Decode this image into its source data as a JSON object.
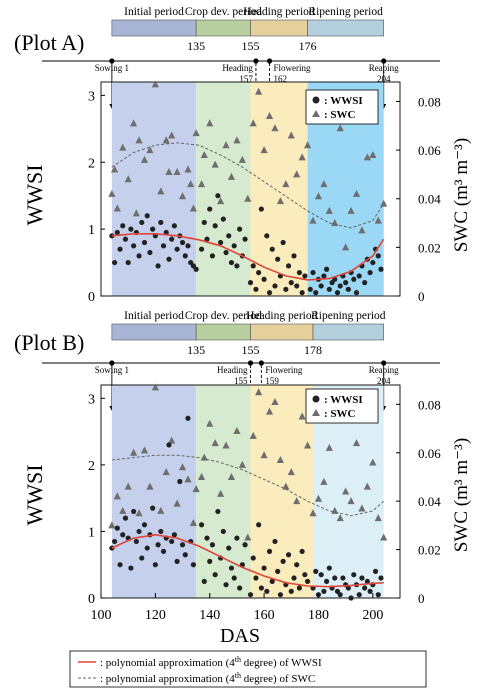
{
  "periods_a": [
    {
      "label": "Initial period",
      "color": "#a9b5d4",
      "from": 104,
      "to": 135
    },
    {
      "label": "Crop dev. period",
      "color": "#b7cf9f",
      "from": 135,
      "to": 155
    },
    {
      "label": "Heading period",
      "color": "#e6d09e",
      "from": 155,
      "to": 176
    },
    {
      "label": "Ripening period",
      "color": "#b4d0dd",
      "from": 176,
      "to": 204
    }
  ],
  "periods_b": [
    {
      "label": "Initial period",
      "color": "#a9b5d4",
      "from": 104,
      "to": 135
    },
    {
      "label": "Crop dev. period",
      "color": "#b7cf9f",
      "from": 135,
      "to": 155
    },
    {
      "label": "Heading period",
      "color": "#e6d09e",
      "from": 155,
      "to": 178
    },
    {
      "label": "Ripening period",
      "color": "#b4d0dd",
      "from": 178,
      "to": 204
    }
  ],
  "ticks_a": [
    "135",
    "155",
    "176"
  ],
  "ticks_b": [
    "135",
    "155",
    "178"
  ],
  "plot_a": {
    "title": "(Plot A)",
    "events": [
      {
        "label": "Sowing 1",
        "das": 104
      },
      {
        "label": "Heading",
        "sub": "157",
        "das": 157
      },
      {
        "label": "Flowering",
        "sub": "162",
        "das": 162
      },
      {
        "label": "Reaping",
        "sub": "204",
        "das": 204
      }
    ]
  },
  "plot_b": {
    "title": "(Plot B)",
    "events": [
      {
        "label": "Sowing 1",
        "das": 104
      },
      {
        "label": "Heading",
        "sub": "155",
        "das": 155
      },
      {
        "label": "Flowering",
        "sub": "159",
        "das": 159
      },
      {
        "label": "Reaping",
        "sub": "204",
        "das": 204
      }
    ]
  },
  "axes": {
    "ylabel_left": "WWSI",
    "ylabel_right": "SWC (m³ m⁻³)",
    "xlabel": "DAS",
    "x_ticks": [
      "100",
      "120",
      "140",
      "160",
      "180",
      "200"
    ],
    "y_left_ticks": [
      "0",
      "1",
      "2",
      "3"
    ],
    "y_right_ticks": [
      "0",
      "0.02",
      "0.04",
      "0.06",
      "0.08"
    ]
  },
  "legend_inset": {
    "wwsi": ": WWSI",
    "swc": ": SWC"
  },
  "legend_bottom": {
    "line1_pre": ": polynomial approximation (4",
    "sup": "th",
    "line1_post": " degree) of WWSI",
    "line2_pre": ": polynomial approximation (4",
    "line2_post": " degree) of SWC"
  },
  "colors": {
    "initial": "#c5d0ec",
    "crop": "#d6ead0",
    "heading": "#fbecbe",
    "ripening_a": "#9ad8f5",
    "ripening_b": "#dceef6",
    "wwsi_curve": "#e0453a",
    "marker": "#222222",
    "swc_marker": "#6e6e6e"
  },
  "chart_data": [
    {
      "type": "scatter",
      "title": "(Plot A)",
      "xlabel": "DAS",
      "ylabel": "WWSI",
      "y2label": "SWC (m³ m⁻³)",
      "xlim": [
        100,
        210
      ],
      "ylim": [
        0,
        3.2
      ],
      "y2lim": [
        0,
        0.088
      ],
      "series": [
        {
          "name": "WWSI",
          "axis": "left",
          "x": [
            104,
            105,
            106,
            107,
            108,
            109,
            110,
            111,
            112,
            113,
            114,
            115,
            116,
            117,
            118,
            119,
            120,
            121,
            122,
            123,
            124,
            125,
            126,
            127,
            128,
            129,
            130,
            131,
            132,
            133,
            134,
            135,
            137,
            138,
            139,
            140,
            141,
            142,
            143,
            144,
            145,
            146,
            147,
            148,
            149,
            150,
            151,
            152,
            153,
            155,
            156,
            157,
            158,
            159,
            160,
            161,
            162,
            163,
            164,
            165,
            166,
            167,
            168,
            169,
            170,
            171,
            172,
            173,
            174,
            175,
            177,
            178,
            179,
            180,
            181,
            182,
            183,
            184,
            185,
            186,
            187,
            188,
            189,
            190,
            191,
            192,
            193,
            194,
            195,
            196,
            197,
            198,
            199,
            200,
            201,
            202,
            203
          ],
          "y": [
            0.9,
            0.5,
            0.95,
            0.7,
            1.05,
            0.85,
            0.5,
            1.0,
            0.75,
            0.95,
            0.6,
            1.1,
            0.8,
            1.2,
            0.65,
            1.0,
            0.9,
            0.45,
            1.1,
            0.75,
            0.95,
            0.55,
            0.85,
            1.05,
            0.7,
            0.9,
            0.8,
            0.6,
            0.75,
            0.5,
            0.45,
            0.4,
            0.7,
            1.1,
            0.85,
            1.3,
            0.6,
            1.05,
            1.5,
            0.8,
            1.15,
            0.65,
            0.9,
            0.5,
            0.75,
            0.45,
            1.0,
            0.6,
            0.85,
            0.2,
            0.45,
            0.1,
            0.35,
            1.3,
            0.25,
            0.9,
            0.05,
            0.7,
            0.15,
            0.55,
            0.3,
            0.8,
            0.1,
            0.45,
            0.2,
            0.6,
            0.15,
            0.35,
            0.05,
            0.3,
            0.1,
            0.35,
            0.05,
            0.25,
            0.15,
            0.3,
            0.4,
            0.1,
            0.2,
            0.25,
            0.05,
            0.15,
            0.3,
            0.2,
            0.1,
            0.35,
            0.25,
            0.05,
            0.3,
            0.45,
            0.2,
            0.55,
            0.35,
            0.5,
            0.7,
            0.6,
            0.4
          ]
        },
        {
          "name": "SWC",
          "axis": "right",
          "x": [
            104,
            105,
            106,
            108,
            110,
            112,
            113,
            114,
            116,
            118,
            120,
            122,
            124,
            125,
            126,
            128,
            130,
            132,
            133,
            134,
            135,
            137,
            138,
            140,
            142,
            144,
            146,
            148,
            150,
            152,
            154,
            156,
            158,
            160,
            162,
            164,
            166,
            168,
            170,
            172,
            174,
            176,
            178,
            180,
            182,
            184,
            186,
            188,
            190,
            192,
            194,
            196,
            198,
            200,
            202,
            204
          ],
          "y": [
            0.042,
            0.052,
            0.036,
            0.061,
            0.048,
            0.071,
            0.034,
            0.064,
            0.056,
            0.06,
            0.087,
            0.043,
            0.064,
            0.051,
            0.066,
            0.051,
            0.041,
            0.052,
            0.046,
            0.036,
            0.067,
            0.046,
            0.058,
            0.071,
            0.054,
            0.039,
            0.062,
            0.049,
            0.064,
            0.056,
            0.04,
            0.071,
            0.084,
            0.06,
            0.074,
            0.069,
            0.039,
            0.046,
            0.066,
            0.05,
            0.057,
            0.062,
            0.031,
            0.041,
            0.046,
            0.035,
            0.03,
            0.069,
            0.02,
            0.035,
            0.042,
            0.027,
            0.057,
            0.058,
            0.031,
            0.038
          ]
        }
      ],
      "fits": [
        {
          "name": "polynomial approximation (4th degree) of WWSI",
          "axis": "left",
          "x": [
            104,
            112,
            120,
            128,
            136,
            144,
            152,
            160,
            168,
            176,
            184,
            192,
            200,
            204
          ],
          "y": [
            0.9,
            0.93,
            0.93,
            0.9,
            0.84,
            0.75,
            0.6,
            0.43,
            0.3,
            0.24,
            0.26,
            0.37,
            0.6,
            0.85
          ]
        },
        {
          "name": "polynomial approximation (4th degree) of SWC",
          "axis": "right",
          "x": [
            104,
            112,
            120,
            128,
            136,
            144,
            152,
            160,
            168,
            176,
            184,
            192,
            200,
            204
          ],
          "y": [
            0.053,
            0.059,
            0.062,
            0.063,
            0.062,
            0.058,
            0.053,
            0.047,
            0.041,
            0.035,
            0.03,
            0.028,
            0.031,
            0.038
          ]
        }
      ]
    },
    {
      "type": "scatter",
      "title": "(Plot B)",
      "xlabel": "DAS",
      "ylabel": "WWSI",
      "y2label": "SWC (m³ m⁻³)",
      "xlim": [
        100,
        210
      ],
      "ylim": [
        0,
        3.2
      ],
      "y2lim": [
        0,
        0.088
      ],
      "series": [
        {
          "name": "WWSI",
          "axis": "left",
          "x": [
            104,
            105,
            106,
            107,
            108,
            109,
            110,
            111,
            112,
            113,
            114,
            115,
            116,
            117,
            118,
            119,
            120,
            121,
            122,
            123,
            124,
            125,
            126,
            127,
            128,
            129,
            130,
            131,
            132,
            133,
            134,
            137,
            138,
            139,
            140,
            141,
            142,
            143,
            144,
            145,
            146,
            147,
            148,
            149,
            150,
            151,
            152,
            153,
            155,
            156,
            157,
            158,
            159,
            160,
            161,
            162,
            163,
            164,
            165,
            166,
            167,
            168,
            169,
            170,
            171,
            172,
            173,
            174,
            175,
            176,
            178,
            179,
            180,
            181,
            182,
            183,
            184,
            185,
            186,
            187,
            188,
            189,
            190,
            191,
            192,
            193,
            194,
            195,
            196,
            197,
            198,
            199,
            200,
            201,
            202,
            203
          ],
          "y": [
            0.75,
            0.85,
            1.05,
            0.5,
            0.95,
            1.2,
            0.9,
            0.45,
            1.3,
            0.85,
            1.0,
            0.6,
            1.1,
            0.75,
            0.95,
            1.35,
            0.5,
            0.8,
            1.0,
            0.7,
            0.9,
            2.3,
            0.85,
            0.95,
            0.55,
            1.75,
            0.8,
            0.65,
            2.7,
            0.85,
            0.5,
            1.1,
            0.25,
            0.9,
            0.55,
            0.8,
            0.35,
            1.3,
            0.6,
            1.0,
            0.2,
            0.75,
            0.45,
            0.3,
            0.9,
            0.15,
            0.5,
            0.8,
            0.05,
            0.6,
            0.3,
            1.1,
            0.15,
            0.45,
            0.1,
            0.7,
            0.25,
            0.85,
            0.4,
            0.05,
            0.55,
            0.2,
            0.65,
            0.1,
            0.3,
            0.5,
            0.15,
            0.7,
            0.35,
            0.25,
            0.15,
            0.4,
            0.05,
            0.35,
            0.1,
            0.25,
            0.45,
            0.15,
            0.3,
            0.1,
            0.05,
            0.3,
            0.2,
            0.15,
            0.0,
            0.35,
            0.2,
            0.05,
            0.3,
            0.15,
            0.25,
            0.1,
            0.2,
            0.4,
            0.05,
            0.3
          ]
        },
        {
          "name": "SWC",
          "axis": "right",
          "x": [
            104,
            106,
            108,
            110,
            112,
            114,
            116,
            118,
            120,
            122,
            124,
            126,
            128,
            130,
            132,
            134,
            135,
            137,
            138,
            140,
            142,
            144,
            146,
            148,
            150,
            152,
            154,
            156,
            158,
            160,
            162,
            164,
            166,
            168,
            170,
            172,
            174,
            176,
            178,
            180,
            182,
            184,
            186,
            188,
            190,
            192,
            194,
            196,
            198,
            200,
            202,
            204
          ],
          "y": [
            0.03,
            0.042,
            0.036,
            0.046,
            0.06,
            0.035,
            0.061,
            0.046,
            0.087,
            0.036,
            0.052,
            0.065,
            0.039,
            0.054,
            0.049,
            0.031,
            0.045,
            0.05,
            0.058,
            0.072,
            0.064,
            0.043,
            0.063,
            0.05,
            0.069,
            0.055,
            0.025,
            0.067,
            0.085,
            0.059,
            0.077,
            0.081,
            0.057,
            0.046,
            0.052,
            0.04,
            0.075,
            0.063,
            0.035,
            0.041,
            0.048,
            0.062,
            0.036,
            0.033,
            0.044,
            0.04,
            0.064,
            0.037,
            0.046,
            0.056,
            0.033,
            0.025
          ]
        }
      ],
      "fits": [
        {
          "name": "polynomial approximation (4th degree) of WWSI",
          "axis": "left",
          "x": [
            104,
            112,
            120,
            128,
            136,
            144,
            152,
            160,
            168,
            176,
            184,
            192,
            200,
            204
          ],
          "y": [
            0.75,
            0.9,
            0.95,
            0.9,
            0.78,
            0.62,
            0.46,
            0.33,
            0.23,
            0.18,
            0.17,
            0.19,
            0.22,
            0.23
          ]
        },
        {
          "name": "polynomial approximation (4th degree) of SWC",
          "axis": "right",
          "x": [
            104,
            112,
            120,
            128,
            136,
            144,
            152,
            160,
            168,
            176,
            184,
            192,
            200,
            204
          ],
          "y": [
            0.057,
            0.058,
            0.059,
            0.059,
            0.058,
            0.056,
            0.053,
            0.049,
            0.045,
            0.04,
            0.036,
            0.034,
            0.036,
            0.04
          ]
        }
      ]
    }
  ]
}
